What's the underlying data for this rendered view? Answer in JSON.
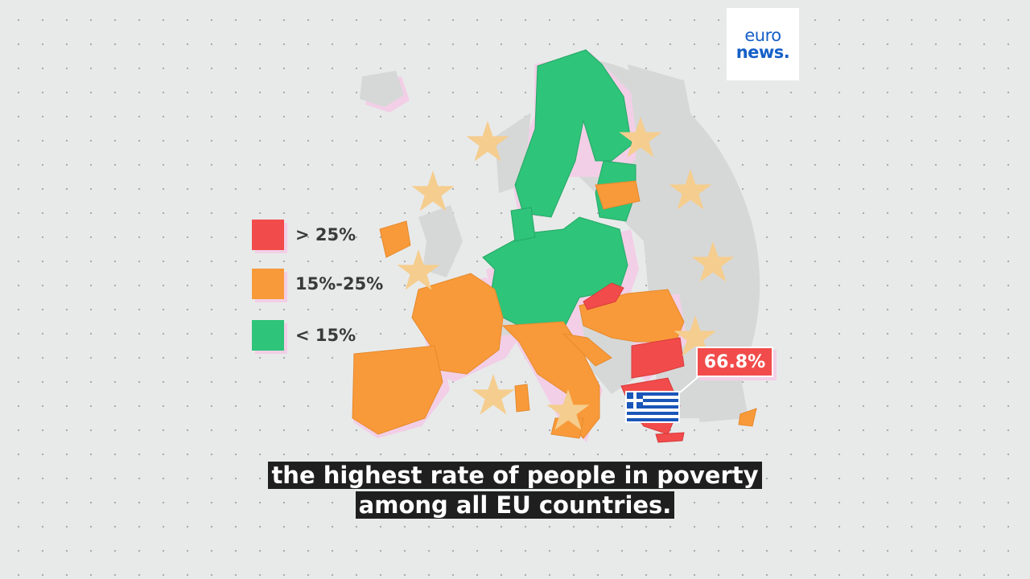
{
  "logo": {
    "line1": "euro",
    "line2": "news."
  },
  "legend": [
    {
      "label": "> 25%",
      "color": "#f24b4b"
    },
    {
      "label": "15%-25%",
      "color": "#f89a3a"
    },
    {
      "label": "< 15%",
      "color": "#2ec47a"
    }
  ],
  "highlight": {
    "country": "Greece",
    "value": "66.8%"
  },
  "caption": {
    "line1": "the highest rate of people in poverty",
    "line2": "among all EU countries."
  },
  "colors": {
    "high": "#f24b4b",
    "mid": "#f89a3a",
    "low": "#2ec47a",
    "non_eu": "#d6d8d8",
    "star": "#f5cd8e",
    "shadow": "#f2cfe6"
  }
}
